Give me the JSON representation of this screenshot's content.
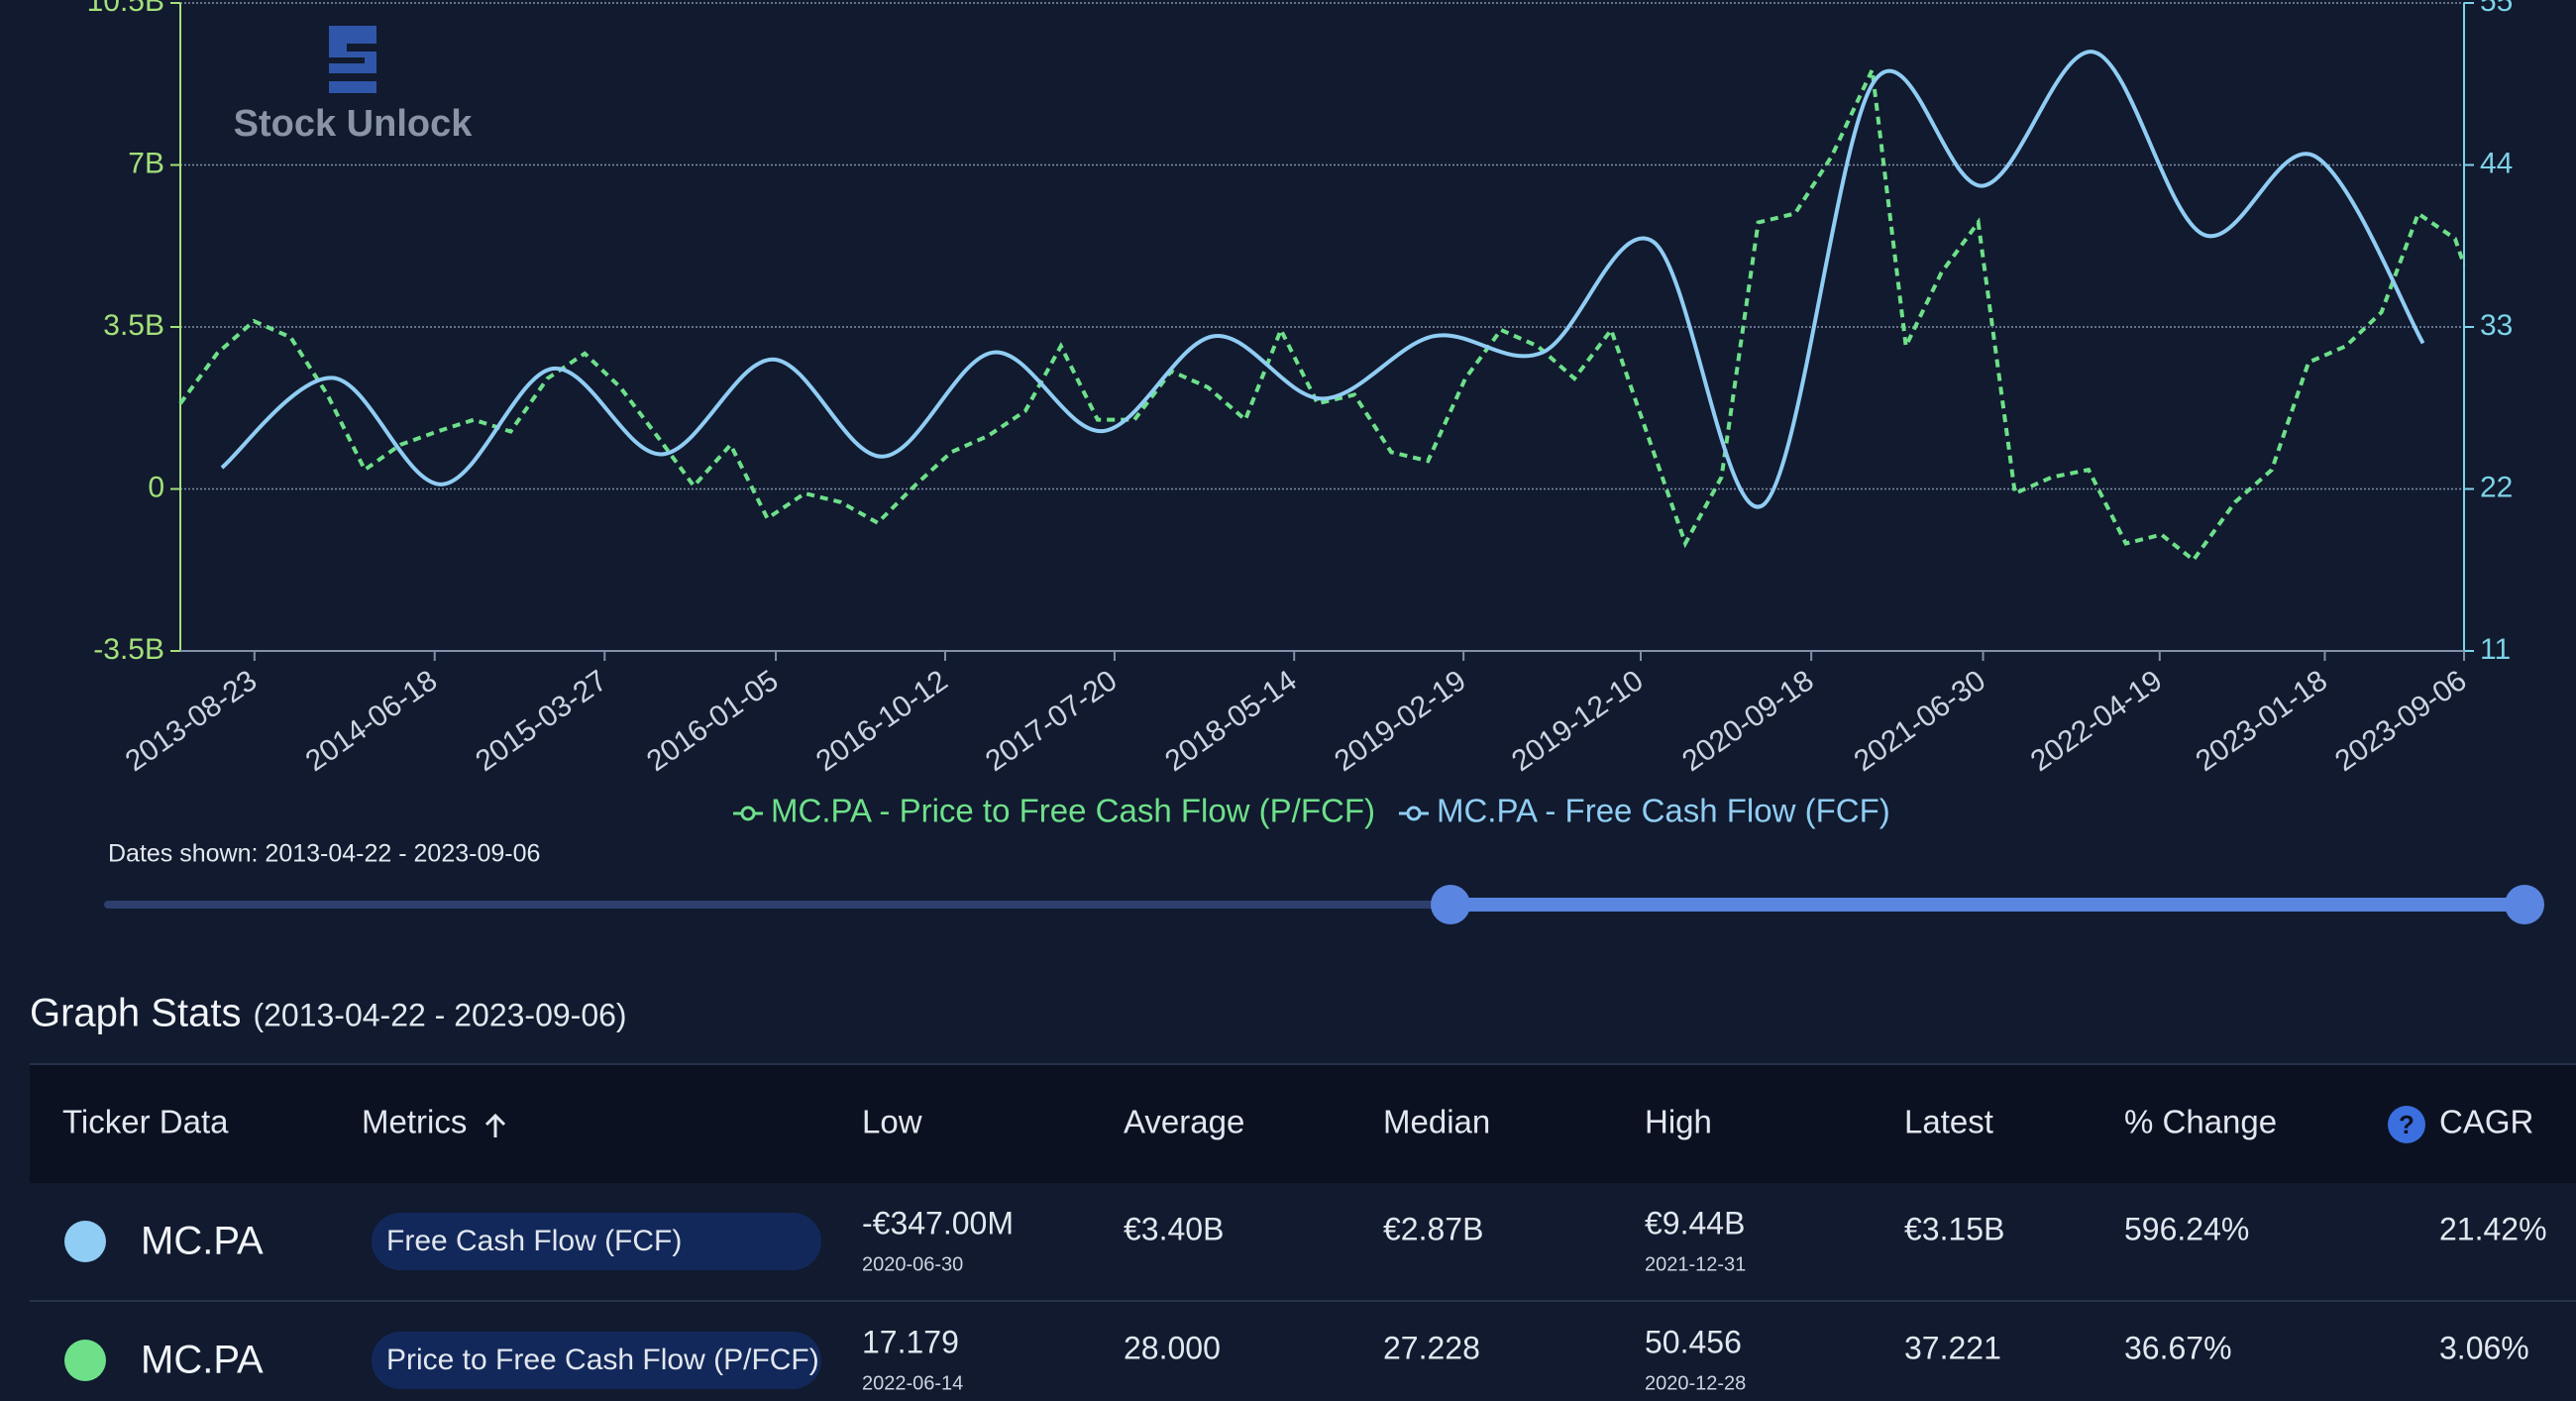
{
  "chart_data": {
    "type": "line",
    "logo": "Stock Unlock",
    "xlim": [
      "2013-04-22",
      "2023-09-06"
    ],
    "xticks": [
      "2013-08-23",
      "2014-06-18",
      "2015-03-27",
      "2016-01-05",
      "2016-10-12",
      "2017-07-20",
      "2018-05-14",
      "2019-02-19",
      "2019-12-10",
      "2020-09-18",
      "2021-06-30",
      "2022-04-19",
      "2023-01-18",
      "2023-09-06"
    ],
    "ylim": [
      -3500000000,
      10500000000
    ],
    "yticks": [
      {
        "value": -3500000000,
        "label": "-3.5B"
      },
      {
        "value": 0,
        "label": "0"
      },
      {
        "value": 3500000000,
        "label": "3.5B"
      },
      {
        "value": 7000000000,
        "label": "7B"
      },
      {
        "value": 10500000000,
        "label": "10.5B"
      }
    ],
    "y2lim": [
      11,
      55
    ],
    "y2ticks": [
      11,
      22,
      33,
      44,
      55
    ],
    "grid": true,
    "series": [
      {
        "name": "MC.PA - Price to Free Cash Flow (P/FCF)",
        "color": "#6ee08a",
        "axis": "y2",
        "dashed": true,
        "x": [
          "2013-04-22",
          "2013-06-22",
          "2013-08-22",
          "2013-10-22",
          "2013-12-22",
          "2014-02-22",
          "2014-04-22",
          "2014-06-22",
          "2014-08-22",
          "2014-10-22",
          "2014-12-22",
          "2015-02-22",
          "2015-04-22",
          "2015-06-22",
          "2015-08-22",
          "2015-10-22",
          "2015-12-22",
          "2016-02-22",
          "2016-04-22",
          "2016-06-22",
          "2016-08-22",
          "2016-10-22",
          "2016-12-22",
          "2017-02-22",
          "2017-04-22",
          "2017-06-22",
          "2017-08-22",
          "2017-10-22",
          "2017-12-22",
          "2018-02-22",
          "2018-04-22",
          "2018-06-22",
          "2018-08-22",
          "2018-10-22",
          "2018-12-22",
          "2019-02-22",
          "2019-04-22",
          "2019-06-22",
          "2019-08-22",
          "2019-10-22",
          "2019-12-22",
          "2020-02-22",
          "2020-04-22",
          "2020-06-22",
          "2020-08-22",
          "2020-10-22",
          "2020-12-28",
          "2021-02-22",
          "2021-04-22",
          "2021-06-22",
          "2021-08-22",
          "2021-10-22",
          "2021-12-22",
          "2022-02-22",
          "2022-04-22",
          "2022-06-14",
          "2022-08-22",
          "2022-10-22",
          "2022-12-22",
          "2023-02-22",
          "2023-04-22",
          "2023-06-22",
          "2023-08-22",
          "2023-09-06"
        ],
        "values": [
          27.8,
          31.2,
          33.4,
          32.3,
          28.4,
          23.3,
          25.0,
          25.9,
          26.7,
          25.9,
          29.5,
          31.2,
          28.9,
          25.6,
          22.2,
          25.0,
          20.0,
          21.7,
          21.1,
          19.7,
          22.2,
          24.5,
          25.6,
          27.3,
          31.7,
          26.7,
          26.7,
          30.0,
          28.9,
          26.7,
          32.8,
          27.8,
          28.4,
          24.5,
          23.9,
          29.5,
          32.8,
          31.7,
          29.5,
          32.8,
          25.6,
          18.3,
          22.8,
          40.1,
          40.7,
          44.6,
          50.456,
          31.7,
          36.7,
          40.1,
          21.7,
          22.8,
          23.3,
          18.3,
          18.9,
          17.179,
          21.1,
          23.3,
          30.6,
          31.7,
          34.0,
          40.7,
          39.0,
          37.221
        ]
      },
      {
        "name": "MC.PA - Free Cash Flow (FCF)",
        "color": "#90cdf4",
        "axis": "y",
        "smooth": true,
        "x": [
          "2013-06-30",
          "2013-12-31",
          "2014-06-30",
          "2014-12-31",
          "2015-06-30",
          "2015-12-31",
          "2016-06-30",
          "2016-12-31",
          "2017-06-30",
          "2017-12-31",
          "2018-06-30",
          "2018-12-31",
          "2019-06-30",
          "2019-12-31",
          "2020-06-30",
          "2020-12-31",
          "2021-06-30",
          "2021-12-31",
          "2022-06-30",
          "2022-12-31",
          "2023-06-30"
        ],
        "values": [
          460000000,
          2400000000,
          100000000,
          2600000000,
          750000000,
          2800000000,
          700000000,
          2950000000,
          1250000000,
          3300000000,
          1950000000,
          3300000000,
          2950000000,
          5340000000,
          -347000000,
          8800000000,
          6550000000,
          9440000000,
          5500000000,
          7200000000,
          3150000000
        ]
      }
    ]
  },
  "range_note": "Dates shown: 2013-04-22 - 2023-09-06",
  "stats": {
    "title": "Graph Stats",
    "range": "(2013-04-22 - 2023-09-06)",
    "columns": [
      "Ticker Data",
      "Metrics",
      "Low",
      "Average",
      "Median",
      "High",
      "Latest",
      "% Change",
      "CAGR"
    ],
    "rows": [
      {
        "color": "#90cdf4",
        "ticker": "MC.PA",
        "metric": "Free Cash Flow (FCF)",
        "low": "-€347.00M",
        "low_date": "2020-06-30",
        "average": "€3.40B",
        "median": "€2.87B",
        "high": "€9.44B",
        "high_date": "2021-12-31",
        "latest": "€3.15B",
        "change": "596.24%",
        "cagr": "21.42%"
      },
      {
        "color": "#6ee08a",
        "ticker": "MC.PA",
        "metric": "Price to Free Cash Flow (P/FCF)",
        "low": "17.179",
        "low_date": "2022-06-14",
        "average": "28.000",
        "median": "27.228",
        "high": "50.456",
        "high_date": "2020-12-28",
        "latest": "37.221",
        "change": "36.67%",
        "cagr": "3.06%"
      }
    ]
  }
}
